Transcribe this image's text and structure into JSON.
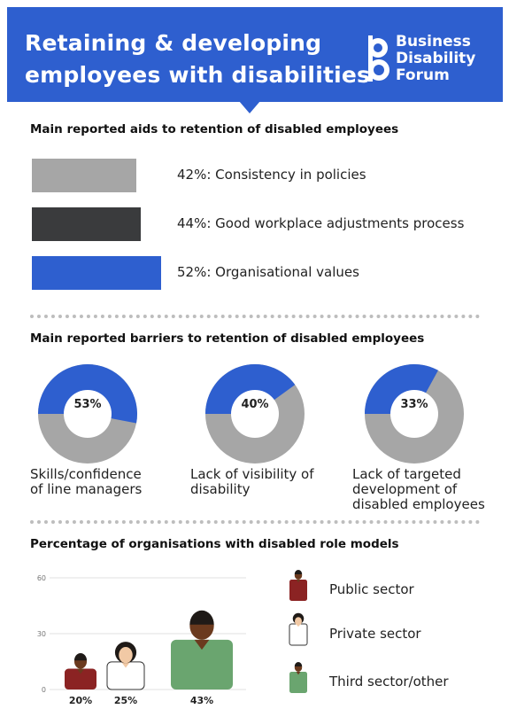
{
  "header": {
    "title_line1": "Retaining & developing",
    "title_line2": "employees with disabilities",
    "brand_line1": "Business",
    "brand_line2": "Disability",
    "brand_line3": "Forum"
  },
  "colors": {
    "brand_blue": "#2e5fcf",
    "light_gray": "#a6a6a6",
    "dark_gray": "#3a3b3d",
    "donut_gray": "#a6a6a6",
    "figure_public_shirt": "#8b2323",
    "figure_private_shirt": "#ffffff",
    "figure_third_shirt": "#6aa56f"
  },
  "sections": {
    "aids_title": "Main reported aids to retention of disabled employees",
    "barriers_title": "Main reported barriers to retention of disabled employees",
    "role_models_title": "Percentage of organisations with disabled role models"
  },
  "chart_data": [
    {
      "type": "bar",
      "orientation": "horizontal",
      "title": "Main reported aids to retention of disabled employees",
      "categories": [
        "Consistency in policies",
        "Good workplace adjustments process",
        "Organisational values"
      ],
      "values": [
        42,
        44,
        52
      ],
      "labels": [
        "42%: Consistency in policies",
        "44%: Good workplace adjustments process",
        "52%: Organisational values"
      ],
      "bar_colors": [
        "#a6a6a6",
        "#3a3b3d",
        "#2e5fcf"
      ]
    },
    {
      "type": "pie",
      "variant": "donut",
      "title": "Main reported barriers to retention of disabled employees",
      "items": [
        {
          "value": 53,
          "value_label": "53%",
          "label": "Skills/confidence\nof line managers"
        },
        {
          "value": 40,
          "value_label": "40%",
          "label": "Lack of visibility of\ndisability"
        },
        {
          "value": 33,
          "value_label": "33%",
          "label": "Lack of targeted\ndevelopment of\ndisabled employees"
        }
      ]
    },
    {
      "type": "bar",
      "variant": "pictogram",
      "title": "Percentage of organisations with disabled role models",
      "categories": [
        "Public sector",
        "Private sector",
        "Third sector/other"
      ],
      "values": [
        20,
        25,
        43
      ],
      "value_labels": [
        "20%",
        "25%",
        "43%"
      ],
      "ylim": [
        0,
        60
      ],
      "yticks": [
        "0",
        "30",
        "60"
      ],
      "grid": true,
      "legend": "right"
    }
  ]
}
